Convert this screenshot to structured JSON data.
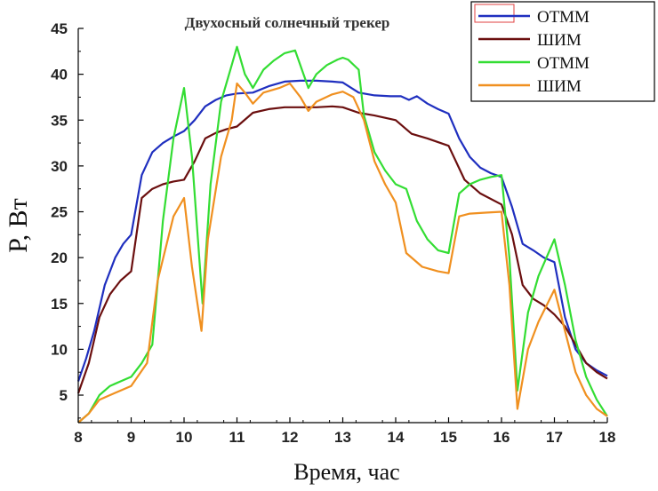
{
  "chart_data": {
    "type": "line",
    "title": "Двухосный солнечный трекер",
    "xlabel": "Время, час",
    "ylabel": "P, Вт",
    "xlim": [
      8,
      18
    ],
    "ylim": [
      2,
      45
    ],
    "xticks": [
      8,
      9,
      10,
      11,
      12,
      13,
      14,
      15,
      16,
      17,
      18
    ],
    "yticks": [
      5,
      10,
      15,
      20,
      25,
      30,
      35,
      40,
      45
    ],
    "grid": false,
    "legend_position": "top-right",
    "series": [
      {
        "name": "ОТММ",
        "color": "#1f2fbf",
        "x": [
          8,
          8.15,
          8.3,
          8.5,
          8.7,
          8.85,
          9.0,
          9.2,
          9.4,
          9.6,
          9.8,
          10.0,
          10.2,
          10.4,
          10.6,
          10.8,
          11.0,
          11.3,
          11.6,
          11.9,
          12.2,
          12.5,
          12.8,
          13.0,
          13.3,
          13.6,
          13.9,
          14.1,
          14.25,
          14.4,
          14.6,
          14.8,
          15.0,
          15.2,
          15.4,
          15.6,
          15.8,
          16.0,
          16.2,
          16.4,
          16.6,
          16.8,
          17.0,
          17.2,
          17.4,
          17.6,
          17.8,
          18.0
        ],
        "y": [
          6.5,
          9.0,
          12.0,
          17.0,
          20.0,
          21.5,
          22.5,
          29.0,
          31.5,
          32.5,
          33.2,
          33.8,
          35.0,
          36.5,
          37.2,
          37.7,
          37.9,
          38.0,
          38.7,
          39.2,
          39.3,
          39.3,
          39.2,
          39.1,
          38.0,
          37.7,
          37.6,
          37.6,
          37.2,
          37.6,
          36.8,
          36.2,
          35.7,
          33.0,
          31.0,
          29.8,
          29.2,
          28.8,
          25.5,
          21.5,
          20.8,
          20.0,
          19.5,
          13.5,
          10.0,
          8.5,
          7.7,
          7.1
        ]
      },
      {
        "name": "ШИМ",
        "color": "#6b0f0f",
        "x": [
          8,
          8.2,
          8.4,
          8.6,
          8.8,
          9.0,
          9.2,
          9.4,
          9.6,
          9.8,
          10.0,
          10.2,
          10.4,
          10.6,
          10.8,
          11.0,
          11.3,
          11.6,
          11.9,
          12.2,
          12.5,
          12.8,
          13.0,
          13.3,
          13.6,
          14.0,
          14.3,
          14.6,
          15.0,
          15.3,
          15.6,
          16.0,
          16.2,
          16.4,
          16.6,
          16.8,
          17.0,
          17.2,
          17.4,
          17.6,
          17.8,
          18.0
        ],
        "y": [
          5.2,
          8.5,
          13.5,
          16.0,
          17.5,
          18.5,
          26.5,
          27.5,
          28.0,
          28.3,
          28.5,
          30.5,
          33.0,
          33.6,
          34.0,
          34.3,
          35.8,
          36.2,
          36.4,
          36.4,
          36.4,
          36.5,
          36.4,
          35.8,
          35.5,
          35.0,
          33.5,
          33.0,
          32.2,
          28.5,
          27.0,
          25.8,
          22.5,
          17.0,
          15.5,
          14.8,
          13.8,
          12.5,
          10.5,
          8.5,
          7.5,
          6.8
        ]
      },
      {
        "name": "ОТММ",
        "color": "#33dd33",
        "x": [
          8,
          8.2,
          8.4,
          8.6,
          8.8,
          9.0,
          9.2,
          9.4,
          9.6,
          9.8,
          10.0,
          10.15,
          10.35,
          10.5,
          10.7,
          10.9,
          11.0,
          11.15,
          11.3,
          11.5,
          11.7,
          11.9,
          12.1,
          12.35,
          12.5,
          12.7,
          12.9,
          13.0,
          13.1,
          13.3,
          13.4,
          13.6,
          13.8,
          14.0,
          14.2,
          14.4,
          14.6,
          14.8,
          15.0,
          15.2,
          15.4,
          15.6,
          15.8,
          16.0,
          16.15,
          16.3,
          16.5,
          16.7,
          16.85,
          17.0,
          17.2,
          17.4,
          17.6,
          17.8,
          18.0
        ],
        "y": [
          2.0,
          3.0,
          5.0,
          6.0,
          6.5,
          7.0,
          8.5,
          10.5,
          24.0,
          33.0,
          38.5,
          31.0,
          15.0,
          28.0,
          37.0,
          41.0,
          43.0,
          40.0,
          38.5,
          40.5,
          41.5,
          42.3,
          42.6,
          38.5,
          40.0,
          41.0,
          41.6,
          41.8,
          41.6,
          40.5,
          35.5,
          31.5,
          29.5,
          28.0,
          27.5,
          24.0,
          22.0,
          20.8,
          20.5,
          27.0,
          28.0,
          28.5,
          28.8,
          29.0,
          20.0,
          5.5,
          14.0,
          18.0,
          20.0,
          22.0,
          17.0,
          11.0,
          7.0,
          4.5,
          2.7
        ]
      },
      {
        "name": "ШИМ",
        "color": "#f09020",
        "x": [
          8,
          8.2,
          8.4,
          8.6,
          8.8,
          9.0,
          9.3,
          9.5,
          9.8,
          10.0,
          10.15,
          10.33,
          10.45,
          10.7,
          10.9,
          11.0,
          11.15,
          11.3,
          11.5,
          11.8,
          12.0,
          12.2,
          12.35,
          12.5,
          12.8,
          13.0,
          13.2,
          13.4,
          13.6,
          13.8,
          14.0,
          14.2,
          14.5,
          14.8,
          15.0,
          15.2,
          15.4,
          15.7,
          16.0,
          16.15,
          16.3,
          16.5,
          16.7,
          17.0,
          17.2,
          17.4,
          17.6,
          17.8,
          18.0
        ],
        "y": [
          2.0,
          3.0,
          4.5,
          5.0,
          5.5,
          6.0,
          8.5,
          17.5,
          24.5,
          26.5,
          19.0,
          12.0,
          22.0,
          31.0,
          35.0,
          39.0,
          38.0,
          36.8,
          38.0,
          38.5,
          39.0,
          37.5,
          36.0,
          37.0,
          37.8,
          38.1,
          37.5,
          35.0,
          30.5,
          28.0,
          26.0,
          20.5,
          19.0,
          18.5,
          18.3,
          24.5,
          24.8,
          24.9,
          25.0,
          17.0,
          3.5,
          10.0,
          13.0,
          16.5,
          12.0,
          7.5,
          5.0,
          3.5,
          2.7
        ]
      }
    ]
  }
}
